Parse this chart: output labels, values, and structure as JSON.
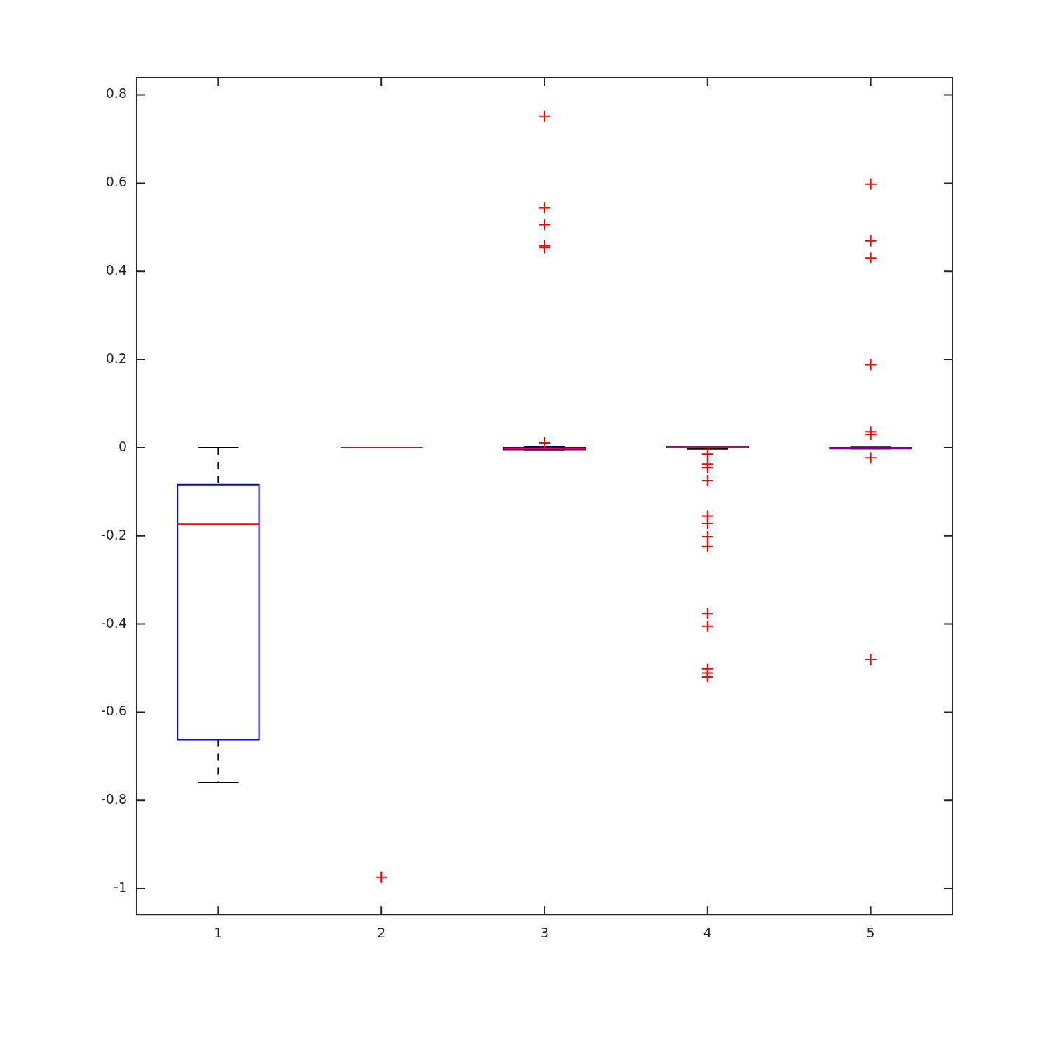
{
  "chart_data": {
    "type": "box",
    "categories": [
      "1",
      "2",
      "3",
      "4",
      "5"
    ],
    "ylim": [
      -1.059,
      0.839
    ],
    "yticks": [
      -1,
      -0.8,
      -0.6,
      -0.4,
      -0.2,
      0,
      0.2,
      0.4,
      0.6,
      0.8
    ],
    "grid": false,
    "line_style": "dashed",
    "marker": "cross",
    "series": [
      {
        "color": "#0000ff",
        "boxes": [
          {
            "low": -0.76,
            "q1": -0.662,
            "median": -0.174,
            "q3": -0.084,
            "high": 0
          },
          {
            "low": 0,
            "q1": 0,
            "median": 0,
            "q3": 0,
            "high": 0,
            "outliers": [
              -0.974
            ]
          },
          {
            "low": -0.004,
            "q1": -0.004,
            "median": -0.002,
            "q3": 0,
            "high": 0.003,
            "outliers": [
              0.752,
              0.544,
              0.506,
              0.458,
              0.454,
              0.011
            ]
          },
          {
            "low": -0.003,
            "q1": 0,
            "median": 0.001,
            "q3": 0.002,
            "high": 0.002,
            "outliers": [
              -0.015,
              -0.037,
              -0.045,
              -0.075,
              -0.155,
              -0.172,
              -0.202,
              -0.224,
              -0.377,
              -0.405,
              -0.502,
              -0.511,
              -0.52
            ]
          },
          {
            "low": -0.002,
            "q1": -0.002,
            "median": -0.001,
            "q3": 0,
            "high": 0.001,
            "outliers": [
              0.598,
              0.469,
              0.43,
              0.188,
              0.036,
              0.03,
              -0.023,
              -0.48
            ]
          }
        ]
      }
    ]
  }
}
